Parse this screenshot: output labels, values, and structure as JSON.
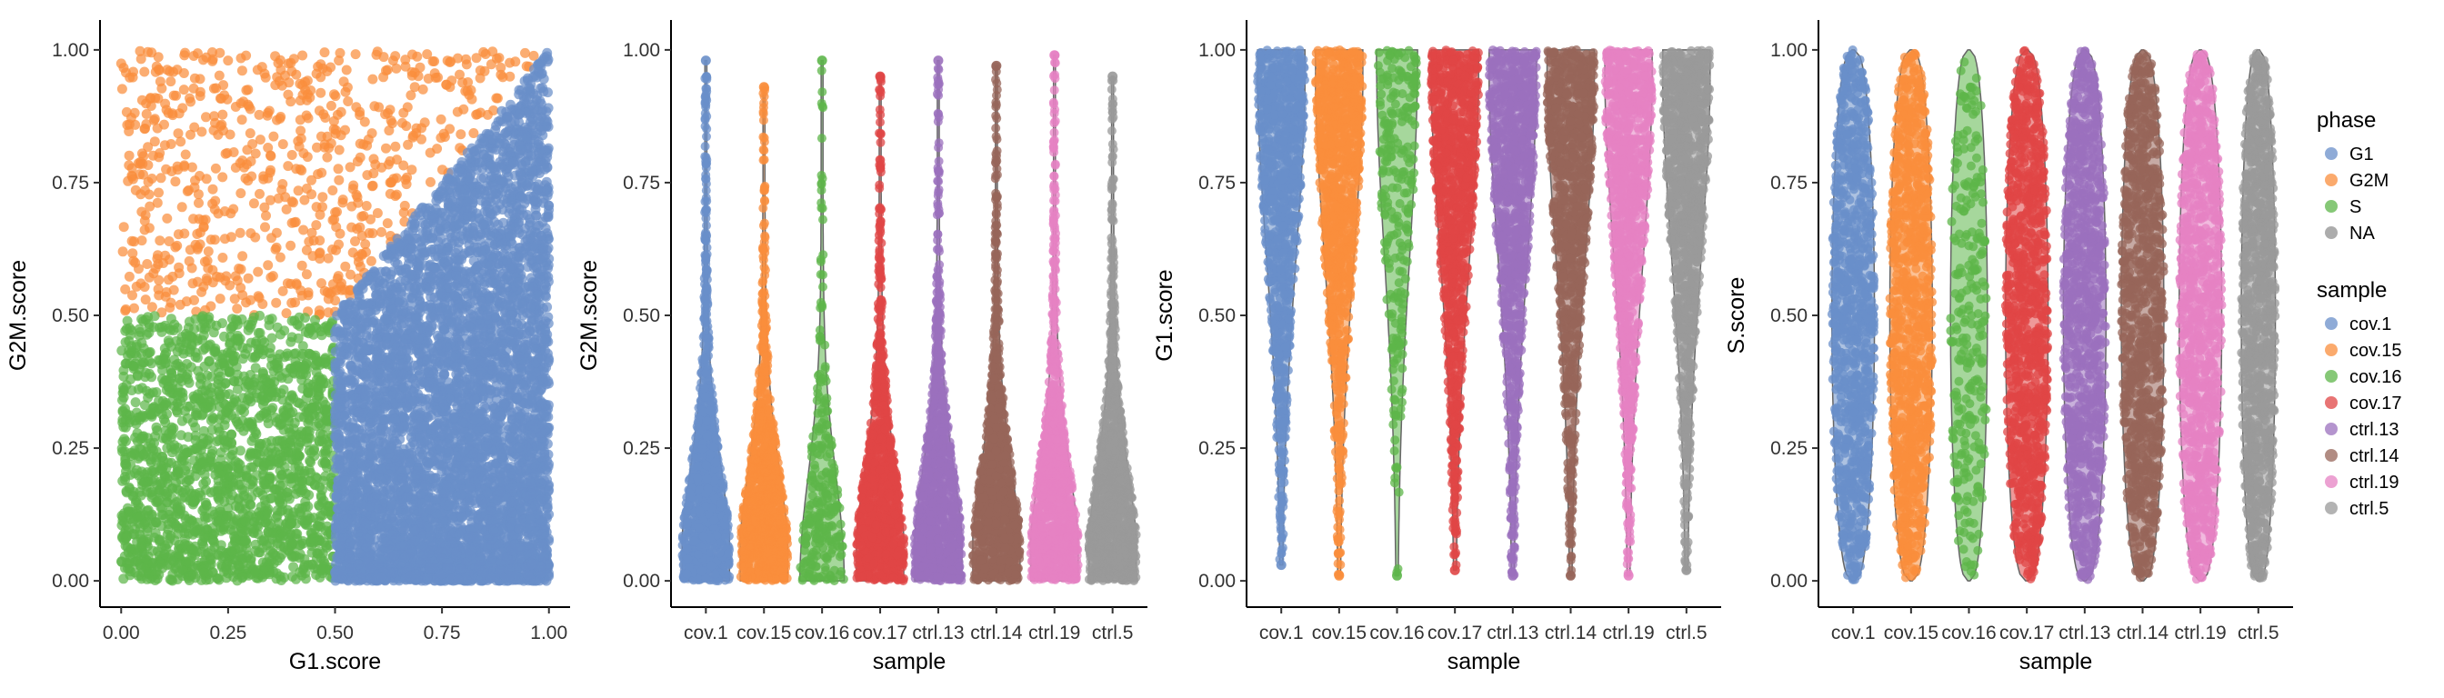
{
  "chart_data": [
    {
      "type": "scatter",
      "xlabel": "G1.score",
      "ylabel": "G2M.score",
      "xlim": [
        0,
        1
      ],
      "ylim": [
        0,
        1
      ],
      "xticks": [
        "0.00",
        "0.25",
        "0.50",
        "0.75",
        "1.00"
      ],
      "yticks": [
        "0.00",
        "0.25",
        "0.50",
        "0.75",
        "1.00"
      ],
      "color_by": "phase",
      "regions": [
        {
          "phase": "G2M",
          "rule": "G2M.score > 0.5 and G2M.score > G1.score",
          "approx_points": 700
        },
        {
          "phase": "S",
          "rule": "G1.score < 0.5 and G2M.score < 0.5",
          "approx_points": 2000
        },
        {
          "phase": "G1",
          "rule": "G1.score > 0.5 and G1.score > G2M.score",
          "approx_points": 6000
        }
      ]
    },
    {
      "type": "violin",
      "xlabel": "sample",
      "ylabel": "G2M.score",
      "ylim": [
        0,
        1
      ],
      "yticks": [
        "0.00",
        "0.25",
        "0.50",
        "0.75",
        "1.00"
      ],
      "categories": [
        "cov.1",
        "cov.15",
        "cov.16",
        "cov.17",
        "ctrl.13",
        "ctrl.14",
        "ctrl.19",
        "ctrl.5"
      ],
      "max_values": [
        0.98,
        0.93,
        0.98,
        0.95,
        0.98,
        0.97,
        0.99,
        0.95
      ],
      "shape": "bottom-heavy"
    },
    {
      "type": "violin",
      "xlabel": "sample",
      "ylabel": "G1.score",
      "ylim": [
        0,
        1
      ],
      "yticks": [
        "0.00",
        "0.25",
        "0.50",
        "0.75",
        "1.00"
      ],
      "categories": [
        "cov.1",
        "cov.15",
        "cov.16",
        "cov.17",
        "ctrl.13",
        "ctrl.14",
        "ctrl.19",
        "ctrl.5"
      ],
      "min_values": [
        0.03,
        0.01,
        0.01,
        0.02,
        0.01,
        0.01,
        0.01,
        0.02
      ],
      "shape": "top-heavy"
    },
    {
      "type": "violin",
      "xlabel": "sample",
      "ylabel": "S.score",
      "ylim": [
        0,
        1
      ],
      "yticks": [
        "0.00",
        "0.25",
        "0.50",
        "0.75",
        "1.00"
      ],
      "categories": [
        "cov.1",
        "cov.15",
        "cov.16",
        "cov.17",
        "ctrl.13",
        "ctrl.14",
        "ctrl.19",
        "ctrl.5"
      ],
      "shape": "uniform"
    }
  ],
  "legend": {
    "phase": {
      "title": "phase",
      "items": [
        {
          "label": "G1",
          "color": "#6A8FC9"
        },
        {
          "label": "G2M",
          "color": "#F98E3C"
        },
        {
          "label": "S",
          "color": "#5DB64A"
        },
        {
          "label": "NA",
          "color": "#909090"
        }
      ]
    },
    "sample": {
      "title": "sample",
      "items": [
        {
          "label": "cov.1",
          "color": "#6A8FC9"
        },
        {
          "label": "cov.15",
          "color": "#F98E3C"
        },
        {
          "label": "cov.16",
          "color": "#5DB64A"
        },
        {
          "label": "cov.17",
          "color": "#E04646"
        },
        {
          "label": "ctrl.13",
          "color": "#9B70BD"
        },
        {
          "label": "ctrl.14",
          "color": "#97655A"
        },
        {
          "label": "ctrl.19",
          "color": "#E581C3"
        },
        {
          "label": "ctrl.5",
          "color": "#999999"
        }
      ]
    }
  }
}
